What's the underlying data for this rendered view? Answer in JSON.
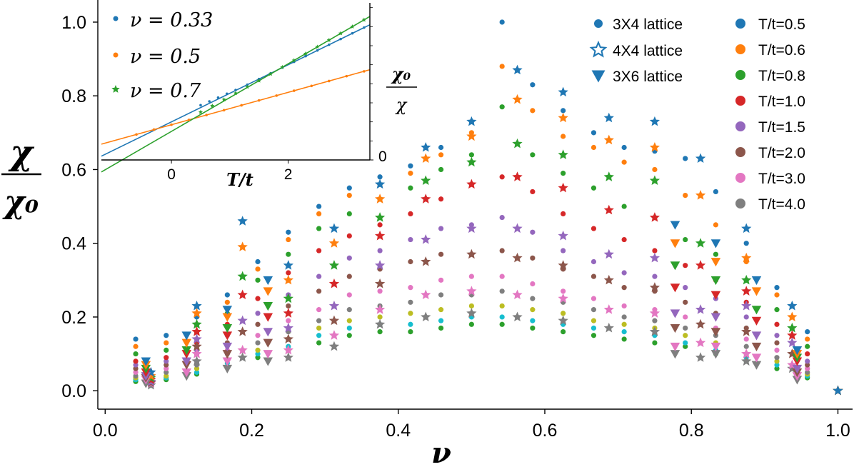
{
  "chart_data": {
    "type": "scatter",
    "xlabel": "ν",
    "ylabel_num": "χ",
    "ylabel_den": "χ₀",
    "xlim": [
      -0.01,
      1.02
    ],
    "ylim": [
      -0.05,
      1.06
    ],
    "xticks": [
      "0.0",
      "0.2",
      "0.4",
      "0.6",
      "0.8",
      "1.0"
    ],
    "yticks": [
      "0.0",
      "0.2",
      "0.4",
      "0.6",
      "0.8",
      "1.0"
    ],
    "temperature_legend": [
      {
        "label": "T/t=0.5",
        "color": "#1f77b4"
      },
      {
        "label": "T/t=0.6",
        "color": "#ff7f0e"
      },
      {
        "label": "T/t=0.8",
        "color": "#2ca02c"
      },
      {
        "label": "T/t=1.0",
        "color": "#d62728"
      },
      {
        "label": "T/t=1.5",
        "color": "#9467bd"
      },
      {
        "label": "T/t=2.0",
        "color": "#8c564b"
      },
      {
        "label": "T/t=3.0",
        "color": "#e377c2"
      },
      {
        "label": "T/t=4.0",
        "color": "#7f7f7f"
      }
    ],
    "lattice_legend": [
      {
        "label": "3X4  lattice",
        "marker": "circle"
      },
      {
        "label": "4X4  lattice",
        "marker": "star"
      },
      {
        "label": "3X6  lattice",
        "marker": "triangle"
      }
    ],
    "extra_colors": [
      "#bcbd22",
      "#17becf",
      "#2ca02c"
    ],
    "series": [
      {
        "lattice": "3X4",
        "marker": "circle",
        "x": [
          0.0417,
          0.0833,
          0.125,
          0.1667,
          0.2083,
          0.25,
          0.2917,
          0.3333,
          0.375,
          0.4167,
          0.4583,
          0.5,
          0.5417,
          0.5833,
          0.625,
          0.6667,
          0.7083,
          0.75,
          0.7917,
          0.8333,
          0.875,
          0.9167,
          0.9583,
          1.0
        ],
        "values": [
          [
            0.14,
            0.15,
            0.2,
            0.26,
            0.35,
            0.43,
            0.5,
            0.55,
            0.58,
            0.61,
            0.66,
            0.73,
            1.0,
            0.83,
            0.76,
            0.7,
            0.66,
            0.65,
            0.63,
            0.54,
            0.4,
            0.28,
            0.16,
            0.0
          ],
          [
            0.12,
            0.13,
            0.18,
            0.24,
            0.33,
            0.41,
            0.48,
            0.53,
            0.56,
            0.59,
            0.64,
            0.7,
            0.88,
            0.76,
            0.69,
            0.66,
            0.62,
            0.6,
            0.53,
            0.45,
            0.35,
            0.26,
            0.14,
            0.0
          ],
          [
            0.1,
            0.11,
            0.16,
            0.21,
            0.3,
            0.37,
            0.44,
            0.48,
            0.52,
            0.55,
            0.6,
            0.64,
            0.77,
            0.64,
            0.59,
            0.55,
            0.5,
            0.47,
            0.41,
            0.37,
            0.3,
            0.22,
            0.12,
            0.0
          ],
          [
            0.08,
            0.09,
            0.13,
            0.18,
            0.25,
            0.32,
            0.38,
            0.42,
            0.45,
            0.48,
            0.52,
            0.56,
            0.58,
            0.54,
            0.48,
            0.44,
            0.41,
            0.38,
            0.34,
            0.3,
            0.24,
            0.18,
            0.1,
            0.0
          ],
          [
            0.07,
            0.08,
            0.11,
            0.15,
            0.21,
            0.26,
            0.31,
            0.36,
            0.38,
            0.41,
            0.44,
            0.45,
            0.47,
            0.43,
            0.38,
            0.35,
            0.32,
            0.31,
            0.28,
            0.25,
            0.2,
            0.15,
            0.08,
            0.0
          ],
          [
            0.06,
            0.07,
            0.1,
            0.13,
            0.18,
            0.23,
            0.27,
            0.31,
            0.33,
            0.35,
            0.37,
            0.37,
            0.38,
            0.36,
            0.33,
            0.31,
            0.28,
            0.27,
            0.24,
            0.21,
            0.17,
            0.13,
            0.07,
            0.0
          ],
          [
            0.05,
            0.06,
            0.08,
            0.11,
            0.15,
            0.19,
            0.22,
            0.26,
            0.27,
            0.28,
            0.3,
            0.31,
            0.31,
            0.29,
            0.27,
            0.25,
            0.23,
            0.22,
            0.2,
            0.17,
            0.14,
            0.11,
            0.06,
            0.0
          ],
          [
            0.04,
            0.05,
            0.07,
            0.1,
            0.13,
            0.16,
            0.19,
            0.22,
            0.23,
            0.24,
            0.26,
            0.26,
            0.27,
            0.25,
            0.24,
            0.22,
            0.2,
            0.19,
            0.17,
            0.15,
            0.12,
            0.09,
            0.05,
            0.0
          ],
          [
            0.035,
            0.04,
            0.06,
            0.085,
            0.11,
            0.14,
            0.17,
            0.19,
            0.2,
            0.21,
            0.22,
            0.23,
            0.23,
            0.22,
            0.21,
            0.19,
            0.18,
            0.17,
            0.15,
            0.13,
            0.1,
            0.08,
            0.045,
            0.0
          ],
          [
            0.03,
            0.035,
            0.05,
            0.075,
            0.1,
            0.12,
            0.15,
            0.17,
            0.18,
            0.18,
            0.19,
            0.2,
            0.2,
            0.19,
            0.18,
            0.17,
            0.16,
            0.15,
            0.13,
            0.11,
            0.09,
            0.07,
            0.04,
            0.0
          ],
          [
            0.025,
            0.03,
            0.045,
            0.065,
            0.09,
            0.11,
            0.13,
            0.15,
            0.16,
            0.16,
            0.17,
            0.18,
            0.18,
            0.17,
            0.16,
            0.15,
            0.14,
            0.13,
            0.12,
            0.1,
            0.08,
            0.06,
            0.035,
            0.0
          ]
        ]
      },
      {
        "lattice": "4X4",
        "marker": "star",
        "x": [
          0.0625,
          0.125,
          0.1875,
          0.25,
          0.3125,
          0.375,
          0.4375,
          0.5,
          0.5625,
          0.625,
          0.6875,
          0.75,
          0.8125,
          0.875,
          0.9375,
          1.0
        ],
        "values": [
          [
            0.05,
            0.23,
            0.46,
            0.34,
            0.44,
            0.56,
            0.66,
            0.73,
            0.87,
            0.81,
            0.74,
            0.73,
            0.63,
            0.44,
            0.23,
            0.0
          ],
          [
            0.04,
            0.21,
            0.39,
            0.3,
            0.4,
            0.52,
            0.63,
            0.69,
            0.79,
            0.74,
            0.68,
            0.66,
            0.53,
            0.36,
            0.2,
            0.0
          ],
          [
            0.035,
            0.18,
            0.31,
            0.25,
            0.34,
            0.47,
            0.57,
            0.62,
            0.67,
            0.64,
            0.58,
            0.57,
            0.4,
            0.3,
            0.17,
            0.0
          ],
          [
            0.03,
            0.16,
            0.26,
            0.21,
            0.29,
            0.42,
            0.52,
            0.56,
            0.58,
            0.55,
            0.49,
            0.47,
            0.34,
            0.27,
            0.15,
            0.0
          ],
          [
            0.025,
            0.14,
            0.19,
            0.17,
            0.23,
            0.34,
            0.41,
            0.44,
            0.44,
            0.42,
            0.37,
            0.36,
            0.22,
            0.23,
            0.13,
            0.0
          ],
          [
            0.022,
            0.12,
            0.16,
            0.14,
            0.19,
            0.29,
            0.35,
            0.37,
            0.36,
            0.34,
            0.3,
            0.28,
            0.18,
            0.16,
            0.1,
            0.0
          ],
          [
            0.02,
            0.1,
            0.11,
            0.11,
            0.15,
            0.22,
            0.26,
            0.27,
            0.26,
            0.25,
            0.22,
            0.21,
            0.13,
            0.1,
            0.07,
            0.0
          ],
          [
            0.015,
            0.08,
            0.09,
            0.09,
            0.12,
            0.18,
            0.2,
            0.21,
            0.2,
            0.19,
            0.17,
            0.16,
            0.09,
            0.08,
            0.06,
            0.0
          ]
        ]
      },
      {
        "lattice": "3X6",
        "marker": "triangle",
        "x": [
          0.0556,
          0.1111,
          0.1667,
          0.2222,
          0.7778,
          0.8333,
          0.8889,
          0.9444
        ],
        "values": [
          [
            0.08,
            0.15,
            0.22,
            0.3,
            0.45,
            0.4,
            0.3,
            0.11
          ],
          [
            0.07,
            0.13,
            0.2,
            0.27,
            0.4,
            0.35,
            0.27,
            0.1
          ],
          [
            0.06,
            0.11,
            0.17,
            0.23,
            0.34,
            0.3,
            0.22,
            0.09
          ],
          [
            0.05,
            0.1,
            0.15,
            0.2,
            0.28,
            0.26,
            0.19,
            0.08
          ],
          [
            0.04,
            0.08,
            0.12,
            0.16,
            0.21,
            0.2,
            0.15,
            0.06
          ],
          [
            0.035,
            0.07,
            0.1,
            0.13,
            0.17,
            0.16,
            0.12,
            0.05
          ],
          [
            0.03,
            0.05,
            0.08,
            0.1,
            0.12,
            0.12,
            0.09,
            0.04
          ],
          [
            0.02,
            0.04,
            0.06,
            0.08,
            0.1,
            0.1,
            0.07,
            0.03
          ]
        ]
      }
    ],
    "inset": {
      "type": "line",
      "xlabel": "T/t",
      "ylabel_num": "χ₀",
      "ylabel_den": "χ",
      "xlim": [
        -1.2,
        3.4
      ],
      "ylim": [
        0.0,
        1.65
      ],
      "xticks": [
        "0",
        "2"
      ],
      "yticks": [
        "0"
      ],
      "legend": [
        {
          "label": "ν = 0.33",
          "color": "#1f77b4",
          "marker": "circle"
        },
        {
          "label": "ν = 0.5",
          "color": "#ff7f0e",
          "marker": "circle"
        },
        {
          "label": "ν = 0.7",
          "color": "#2ca02c",
          "marker": "star"
        }
      ],
      "series": [
        {
          "name": "ν = 0.33",
          "color": "#1f77b4",
          "fit": {
            "slope": 0.3,
            "intercept": 0.4
          },
          "points_x": [
            0.5,
            0.65,
            0.8,
            0.95,
            1.1,
            1.3,
            1.5,
            1.7,
            1.9,
            2.1,
            2.3,
            2.5,
            2.7,
            2.9,
            3.1,
            3.3
          ]
        },
        {
          "name": "ν = 0.5",
          "color": "#ff7f0e",
          "fit": {
            "slope": 0.17,
            "intercept": 0.37
          },
          "points_x": [
            -0.6,
            -0.3,
            0.0,
            0.3,
            0.6,
            0.9,
            1.2,
            1.5,
            1.8,
            2.1,
            2.4,
            2.7,
            3.0,
            3.3
          ]
        },
        {
          "name": "ν = 0.7",
          "color": "#2ca02c",
          "fit": {
            "slope": 0.355,
            "intercept": 0.3
          },
          "points_x": [
            0.5,
            0.7,
            0.9,
            1.1,
            1.3,
            1.5,
            1.7,
            1.9,
            2.1,
            2.3,
            2.5,
            2.7,
            2.9,
            3.1,
            3.3
          ]
        }
      ]
    }
  }
}
